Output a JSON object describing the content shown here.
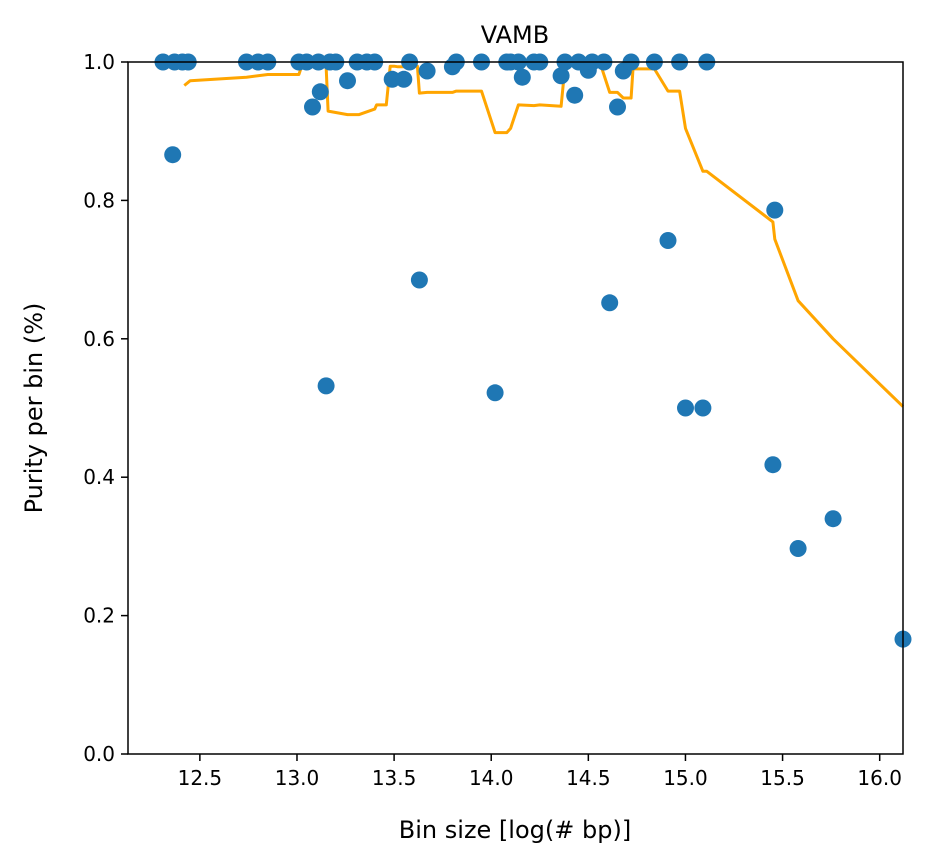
{
  "chart_data": {
    "type": "scatter",
    "title": "VAMB",
    "xlabel": "Bin size [log(# bp)]",
    "ylabel": "Purity per bin (%)",
    "xlim": [
      12.13,
      16.12
    ],
    "ylim": [
      0.0,
      1.0
    ],
    "xticks": [
      12.5,
      13.0,
      13.5,
      14.0,
      14.5,
      15.0,
      15.5,
      16.0
    ],
    "xtick_labels": [
      "12.5",
      "13.0",
      "13.5",
      "14.0",
      "14.5",
      "15.0",
      "15.5",
      "16.0"
    ],
    "yticks": [
      0.0,
      0.2,
      0.4,
      0.6,
      0.8,
      1.0
    ],
    "ytick_labels": [
      "0.0",
      "0.2",
      "0.4",
      "0.6",
      "0.8",
      "1.0"
    ],
    "grid": false,
    "colors": {
      "points": "#1f77b4",
      "line": "#ffa500"
    },
    "series": [
      {
        "type": "scatter",
        "x": [
          12.31,
          12.36,
          12.37,
          12.41,
          12.44,
          12.74,
          12.8,
          12.85,
          13.01,
          13.05,
          13.08,
          13.11,
          13.12,
          13.15,
          13.17,
          13.2,
          13.26,
          13.31,
          13.36,
          13.4,
          13.49,
          13.55,
          13.58,
          13.63,
          13.67,
          13.8,
          13.82,
          13.95,
          14.02,
          14.08,
          14.1,
          14.14,
          14.16,
          14.22,
          14.25,
          14.36,
          14.38,
          14.43,
          14.45,
          14.5,
          14.52,
          14.58,
          14.61,
          14.65,
          14.68,
          14.72,
          14.84,
          14.91,
          14.97,
          15.0,
          15.09,
          15.11,
          15.45,
          15.46,
          15.58,
          15.76,
          16.12
        ],
        "y": [
          1.0,
          0.866,
          1.0,
          1.0,
          1.0,
          1.0,
          1.0,
          1.0,
          1.0,
          1.0,
          0.935,
          1.0,
          0.957,
          0.532,
          1.0,
          1.0,
          0.973,
          1.0,
          1.0,
          1.0,
          0.975,
          0.975,
          1.0,
          0.685,
          0.987,
          0.993,
          1.0,
          1.0,
          0.522,
          1.0,
          1.0,
          1.0,
          0.978,
          1.0,
          1.0,
          0.98,
          1.0,
          0.952,
          1.0,
          0.988,
          1.0,
          1.0,
          0.652,
          0.935,
          0.987,
          1.0,
          1.0,
          0.742,
          1.0,
          0.5,
          0.5,
          1.0,
          0.418,
          0.786,
          0.297,
          0.34,
          0.166
        ]
      },
      {
        "type": "line",
        "x": [
          12.42,
          12.45,
          12.74,
          12.85,
          13.01,
          13.03,
          13.05,
          13.09,
          13.15,
          13.16,
          13.26,
          13.32,
          13.4,
          13.41,
          13.46,
          13.48,
          13.5,
          13.52,
          13.55,
          13.58,
          13.62,
          13.63,
          13.67,
          13.8,
          13.82,
          13.95,
          14.02,
          14.08,
          14.1,
          14.14,
          14.22,
          14.25,
          14.36,
          14.38,
          14.43,
          14.46,
          14.56,
          14.61,
          14.65,
          14.68,
          14.72,
          14.73,
          14.84,
          14.91,
          14.97,
          15.0,
          15.09,
          15.11,
          15.45,
          15.46,
          15.58,
          15.76,
          16.12
        ],
        "y": [
          0.966,
          0.973,
          0.978,
          0.982,
          0.982,
          0.999,
          0.999,
          0.994,
          0.994,
          0.929,
          0.924,
          0.924,
          0.932,
          0.938,
          0.938,
          0.994,
          0.994,
          0.993,
          0.993,
          0.994,
          0.994,
          0.955,
          0.956,
          0.956,
          0.958,
          0.958,
          0.898,
          0.898,
          0.904,
          0.938,
          0.937,
          0.938,
          0.936,
          0.994,
          0.999,
          0.994,
          0.999,
          0.956,
          0.956,
          0.948,
          0.948,
          0.99,
          0.99,
          0.958,
          0.958,
          0.904,
          0.842,
          0.842,
          0.769,
          0.744,
          0.655,
          0.6,
          0.502
        ]
      }
    ]
  }
}
